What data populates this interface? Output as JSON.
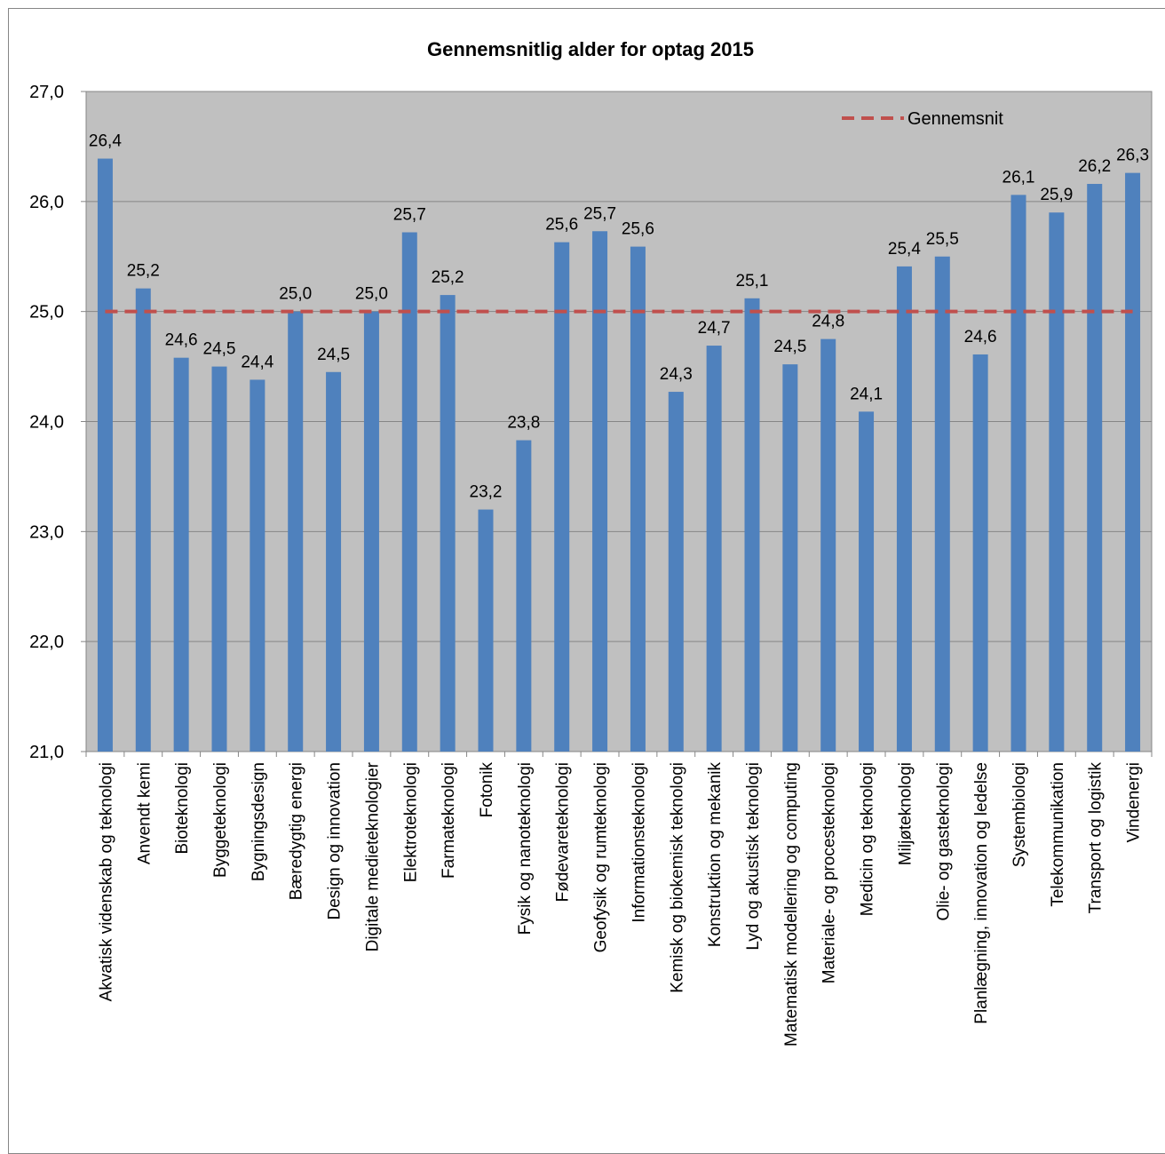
{
  "chart_data": {
    "type": "bar",
    "title": "Gennemsnitlig alder for optag 2015",
    "xlabel": "",
    "ylabel": "",
    "ylim": [
      21.0,
      27.0
    ],
    "yticks": [
      "21,0",
      "22,0",
      "23,0",
      "24,0",
      "25,0",
      "26,0",
      "27,0"
    ],
    "grid": true,
    "legend_position": "top-right",
    "categories": [
      "Akvatisk videnskab og teknologi",
      "Anvendt kemi",
      "Bioteknologi",
      "Byggeteknologi",
      "Bygningsdesign",
      "Bæredygtig energi",
      "Design og innovation",
      "Digitale medieteknologier",
      "Elektroteknologi",
      "Farmateknologi",
      "Fotonik",
      "Fysik og nanoteknologi",
      "Fødevareteknologi",
      "Geofysik og rumteknologi",
      "Informationsteknologi",
      "Kemisk og biokemisk teknologi",
      "Konstruktion og mekanik",
      "Lyd og akustisk teknologi",
      "Matematisk modellering og computing",
      "Materiale- og procesteknologi",
      "Medicin og teknologi",
      "Miljøteknologi",
      "Olie- og gasteknologi",
      "Planlægning, innovation og ledelse",
      "Systembiologi",
      "Telekommunikation",
      "Transport og logistik",
      "Vindenergi"
    ],
    "values": [
      26.39,
      25.21,
      24.58,
      24.5,
      24.38,
      25.0,
      24.45,
      25.0,
      25.72,
      25.15,
      23.2,
      23.83,
      25.63,
      25.73,
      25.59,
      24.27,
      24.69,
      25.12,
      24.52,
      24.75,
      24.09,
      25.41,
      25.5,
      24.61,
      26.06,
      25.9,
      26.16,
      26.26
    ],
    "data_labels": [
      "26,4",
      "25,2",
      "24,6",
      "24,5",
      "24,4",
      "25,0",
      "24,5",
      "25,0",
      "25,7",
      "25,2",
      "23,2",
      "23,8",
      "25,6",
      "25,7",
      "25,6",
      "24,3",
      "24,7",
      "25,1",
      "24,5",
      "24,8",
      "24,1",
      "25,4",
      "25,5",
      "24,6",
      "26,1",
      "25,9",
      "26,2",
      "26,3"
    ],
    "average_line": {
      "name": "Gennemsnit",
      "value": 25.0
    },
    "colors": {
      "bar": "#4F81BD",
      "average_line": "#C0504D",
      "plot_background": "#C0C0C0",
      "gridline": "#868686"
    }
  }
}
